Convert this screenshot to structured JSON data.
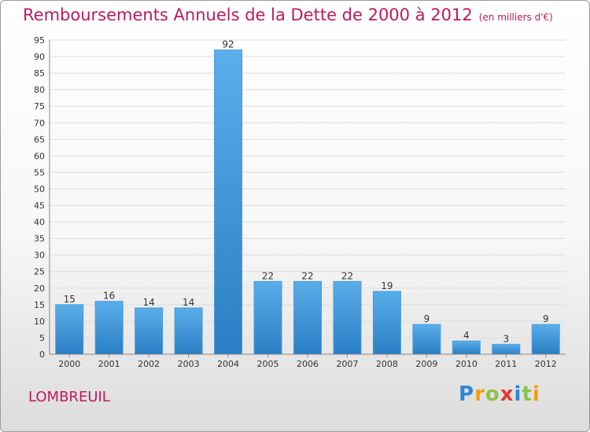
{
  "header": {
    "title": "Remboursements Annuels de la Dette de 2000 à 2012",
    "unit": "(en milliers d'€)"
  },
  "footer": {
    "place": "LOMBREUIL",
    "logo_text": "Proxiti",
    "logo_letters": [
      {
        "ch": "P",
        "color": "#2e86d6"
      },
      {
        "ch": "r",
        "color": "#f39c12"
      },
      {
        "ch": "o",
        "color": "#8bc34a"
      },
      {
        "ch": "x",
        "color": "#e53935"
      },
      {
        "ch": "i",
        "color": "#2e86d6"
      },
      {
        "ch": "t",
        "color": "#8bc34a"
      },
      {
        "ch": "i",
        "color": "#f39c12"
      }
    ]
  },
  "chart_data": {
    "type": "bar",
    "title": "Remboursements Annuels de la Dette de 2000 à 2012",
    "subtitle": "(en milliers d'€)",
    "xlabel": "",
    "ylabel": "",
    "categories": [
      "2000",
      "2001",
      "2002",
      "2003",
      "2004",
      "2005",
      "2006",
      "2007",
      "2008",
      "2009",
      "2010",
      "2011",
      "2012"
    ],
    "values": [
      15,
      16,
      14,
      14,
      92,
      22,
      22,
      22,
      19,
      9,
      4,
      3,
      9
    ],
    "ylim": [
      0,
      95
    ],
    "yticks": [
      0,
      5,
      10,
      15,
      20,
      25,
      30,
      35,
      40,
      45,
      50,
      55,
      60,
      65,
      70,
      75,
      80,
      85,
      90,
      95
    ],
    "grid": true,
    "bar_color": "#3d95d8",
    "legend": "none"
  }
}
